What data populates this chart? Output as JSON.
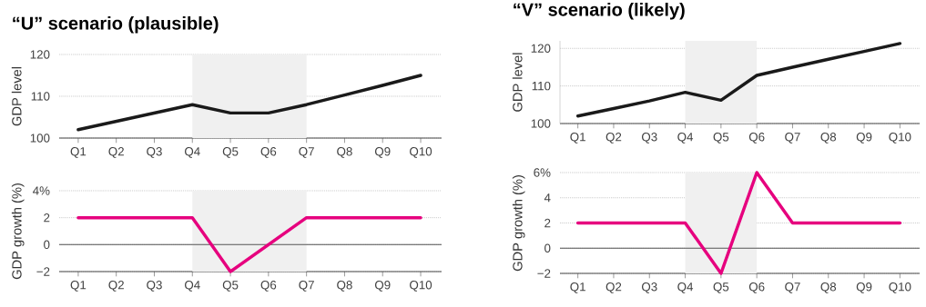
{
  "chart_data": [
    {
      "type": "line",
      "title": "“U” scenario (plausible)",
      "ylabel": "GDP level",
      "categories": [
        "Q1",
        "Q2",
        "Q3",
        "Q4",
        "Q5",
        "Q6",
        "Q7",
        "Q8",
        "Q9",
        "Q10"
      ],
      "series": [
        {
          "color": "#1a1a1a",
          "values": [
            102,
            104,
            106,
            108,
            106,
            106,
            108,
            110.3,
            112.6,
            115
          ]
        }
      ],
      "ylim": [
        100,
        120
      ],
      "yticks": [
        100,
        110,
        120
      ],
      "grid": "y",
      "bands": [
        {
          "axis": "x",
          "from": "Q4",
          "to": "Q7",
          "color": "#f0f0f0"
        }
      ]
    },
    {
      "type": "line",
      "ylabel": "GDP growth (%)",
      "categories": [
        "Q1",
        "Q2",
        "Q3",
        "Q4",
        "Q5",
        "Q6",
        "Q7",
        "Q8",
        "Q9",
        "Q10"
      ],
      "series": [
        {
          "color": "#e6007e",
          "values": [
            2,
            2,
            2,
            2,
            -2,
            0,
            2,
            2,
            2,
            2
          ]
        }
      ],
      "ylim": [
        -2,
        4
      ],
      "yticks": [
        {
          "value": -2,
          "label": "−2"
        },
        0,
        2,
        {
          "value": 4,
          "label": "4%"
        }
      ],
      "grid": "y",
      "bands": [
        {
          "axis": "x",
          "from": "Q4",
          "to": "Q7",
          "color": "#f0f0f0"
        }
      ],
      "ref_lines": [
        {
          "axis": "y",
          "value": 0,
          "color": "#555555"
        }
      ]
    },
    {
      "type": "line",
      "title": "“V” scenario (likely)",
      "ylabel": "GDP level",
      "categories": [
        "Q1",
        "Q2",
        "Q3",
        "Q4",
        "Q5",
        "Q6",
        "Q7",
        "Q8",
        "Q9",
        "Q10"
      ],
      "series": [
        {
          "color": "#1a1a1a",
          "values": [
            102,
            104,
            106,
            108.3,
            106.2,
            112.8,
            115,
            117.1,
            119.2,
            121.3
          ]
        }
      ],
      "ylim": [
        100,
        122
      ],
      "yticks": [
        100,
        110,
        120
      ],
      "grid": "y",
      "bands": [
        {
          "axis": "x",
          "from": "Q4",
          "to": "Q6",
          "color": "#f0f0f0"
        }
      ]
    },
    {
      "type": "line",
      "ylabel": "GDP growth (%)",
      "categories": [
        "Q1",
        "Q2",
        "Q3",
        "Q4",
        "Q5",
        "Q6",
        "Q7",
        "Q8",
        "Q9",
        "Q10"
      ],
      "series": [
        {
          "color": "#e6007e",
          "values": [
            2,
            2,
            2,
            2,
            -2,
            6,
            2,
            2,
            2,
            2
          ]
        }
      ],
      "ylim": [
        -2,
        6
      ],
      "yticks": [
        {
          "value": -2,
          "label": "−2"
        },
        0,
        2,
        4,
        {
          "value": 6,
          "label": "6%"
        }
      ],
      "grid": "y",
      "bands": [
        {
          "axis": "x",
          "from": "Q4",
          "to": "Q6",
          "color": "#f0f0f0"
        }
      ],
      "ref_lines": [
        {
          "axis": "y",
          "value": 0,
          "color": "#555555"
        }
      ]
    }
  ]
}
